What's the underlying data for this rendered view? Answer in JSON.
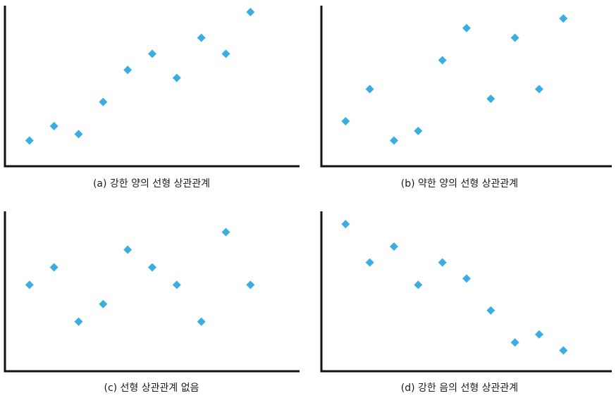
{
  "marker_color": "#3aaee0",
  "axis_color": "#111111",
  "chart_data": [
    {
      "type": "scatter",
      "title": "(a) 강한 양의 선형 상관관계",
      "xlim": [
        0,
        12
      ],
      "ylim": [
        0,
        10
      ],
      "points": [
        [
          1,
          1.6
        ],
        [
          2,
          2.5
        ],
        [
          3,
          2.0
        ],
        [
          4,
          4.0
        ],
        [
          5,
          6.0
        ],
        [
          6,
          7.0
        ],
        [
          7,
          5.5
        ],
        [
          8,
          8.0
        ],
        [
          9,
          7.0
        ],
        [
          10,
          9.6
        ]
      ]
    },
    {
      "type": "scatter",
      "title": "(b) 약한 양의 선형 상관관계",
      "xlim": [
        0,
        12
      ],
      "ylim": [
        0,
        10
      ],
      "points": [
        [
          1,
          2.8
        ],
        [
          2,
          4.8
        ],
        [
          3,
          1.6
        ],
        [
          4,
          2.2
        ],
        [
          5,
          6.6
        ],
        [
          6,
          8.6
        ],
        [
          7,
          4.2
        ],
        [
          8,
          8.0
        ],
        [
          9,
          4.8
        ],
        [
          10,
          9.2
        ]
      ]
    },
    {
      "type": "scatter",
      "title": "(c) 선형 상관관계 없음",
      "xlim": [
        0,
        12
      ],
      "ylim": [
        0,
        10
      ],
      "points": [
        [
          1,
          5.4
        ],
        [
          2,
          6.5
        ],
        [
          3,
          3.1
        ],
        [
          4,
          4.2
        ],
        [
          5,
          7.6
        ],
        [
          6,
          6.5
        ],
        [
          7,
          5.4
        ],
        [
          8,
          3.1
        ],
        [
          9,
          8.7
        ],
        [
          10,
          5.4
        ]
      ]
    },
    {
      "type": "scatter",
      "title": "(d) 강한 음의 선형 상관관계",
      "xlim": [
        0,
        12
      ],
      "ylim": [
        0,
        10
      ],
      "points": [
        [
          1,
          9.2
        ],
        [
          2,
          6.8
        ],
        [
          3,
          7.8
        ],
        [
          4,
          5.4
        ],
        [
          5,
          6.8
        ],
        [
          6,
          5.8
        ],
        [
          7,
          3.8
        ],
        [
          8,
          1.8
        ],
        [
          9,
          2.3
        ],
        [
          10,
          1.3
        ]
      ]
    }
  ]
}
